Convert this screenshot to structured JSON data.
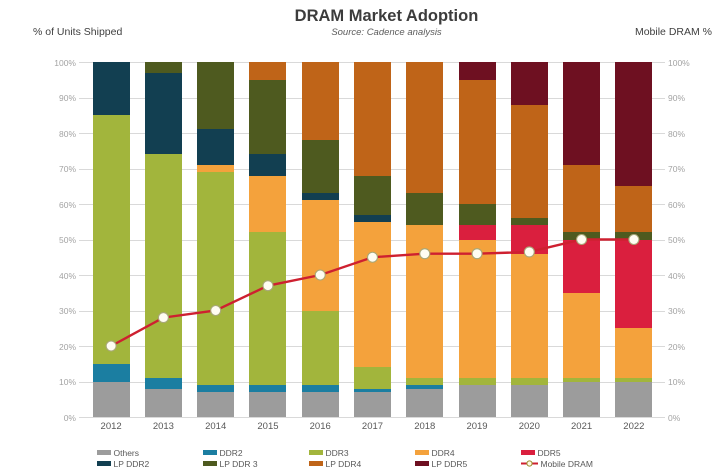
{
  "header": {
    "title": "DRAM Market Adoption",
    "subtitle": "Source: Cadence analysis",
    "left_axis_label": "% of Units Shipped",
    "right_axis_label": "Mobile DRAM %"
  },
  "chart_data": {
    "type": "bar",
    "subtype": "stacked-100-percent-with-line-overlay",
    "title": "DRAM Market Adoption",
    "source_note": "Source: Cadence analysis",
    "ylabel_left": "% of Units Shipped",
    "ylabel_right": "Mobile DRAM %",
    "ylim": [
      0,
      100
    ],
    "grid": true,
    "legend_position": "bottom",
    "categories": [
      "2012",
      "2013",
      "2014",
      "2015",
      "2016",
      "2017",
      "2018",
      "2019",
      "2020",
      "2021",
      "2022"
    ],
    "y_ticks": [
      "0%",
      "10%",
      "20%",
      "30%",
      "40%",
      "50%",
      "60%",
      "70%",
      "80%",
      "90%",
      "100%"
    ],
    "series": [
      {
        "name": "Others",
        "color": "#9c9c9c",
        "values": [
          10,
          8,
          7,
          7,
          7,
          7,
          8,
          9,
          9,
          10,
          10
        ]
      },
      {
        "name": "DDR2",
        "color": "#1b7ea1",
        "values": [
          5,
          3,
          2,
          2,
          2,
          1,
          1,
          0,
          0,
          0,
          0
        ]
      },
      {
        "name": "DDR3",
        "color": "#a2b53c",
        "values": [
          70,
          63,
          60,
          43,
          21,
          6,
          2,
          2,
          2,
          1,
          1
        ]
      },
      {
        "name": "DDR4",
        "color": "#f4a23c",
        "values": [
          0,
          0,
          2,
          16,
          31,
          41,
          43,
          39,
          35,
          24,
          14
        ]
      },
      {
        "name": "DDR5",
        "color": "#da1f3e",
        "values": [
          0,
          0,
          0,
          0,
          0,
          0,
          0,
          4,
          8,
          15,
          25
        ]
      },
      {
        "name": "LP DDR2",
        "color": "#123f51",
        "values": [
          15,
          23,
          10,
          6,
          2,
          2,
          0,
          0,
          0,
          0,
          0
        ]
      },
      {
        "name": "LP DDR 3",
        "color": "#4e5a1f",
        "values": [
          0,
          3,
          19,
          21,
          15,
          11,
          9,
          6,
          2,
          2,
          2
        ]
      },
      {
        "name": "LP DDR4",
        "color": "#bf6418",
        "values": [
          0,
          0,
          0,
          5,
          22,
          32,
          37,
          35,
          32,
          19,
          13
        ]
      },
      {
        "name": "LP DDR5",
        "color": "#6e1021",
        "values": [
          0,
          0,
          0,
          0,
          0,
          0,
          0,
          5,
          12,
          29,
          35
        ]
      }
    ],
    "line_series": {
      "name": "Mobile DRAM",
      "color": "#ce2030",
      "marker_fill": "#fffdf2",
      "marker_stroke": "#a8a878",
      "values": [
        20,
        28,
        30,
        37,
        40,
        45,
        46,
        46,
        46.5,
        50,
        50
      ]
    }
  },
  "legend": {
    "columns": [
      [
        {
          "label": "Others",
          "color": "#9c9c9c",
          "kind": "swatch"
        },
        {
          "label": "LP DDR2",
          "color": "#123f51",
          "kind": "swatch"
        }
      ],
      [
        {
          "label": "DDR2",
          "color": "#1b7ea1",
          "kind": "swatch"
        },
        {
          "label": "LP DDR 3",
          "color": "#4e5a1f",
          "kind": "swatch"
        }
      ],
      [
        {
          "label": "DDR3",
          "color": "#a2b53c",
          "kind": "swatch"
        },
        {
          "label": "LP DDR4",
          "color": "#bf6418",
          "kind": "swatch"
        }
      ],
      [
        {
          "label": "DDR4",
          "color": "#f4a23c",
          "kind": "swatch"
        },
        {
          "label": "LP DDR5",
          "color": "#6e1021",
          "kind": "swatch"
        }
      ],
      [
        {
          "label": "DDR5",
          "color": "#da1f3e",
          "kind": "swatch"
        },
        {
          "label": "Mobile DRAM",
          "color": "#ce2030",
          "kind": "line-marker"
        }
      ]
    ]
  }
}
